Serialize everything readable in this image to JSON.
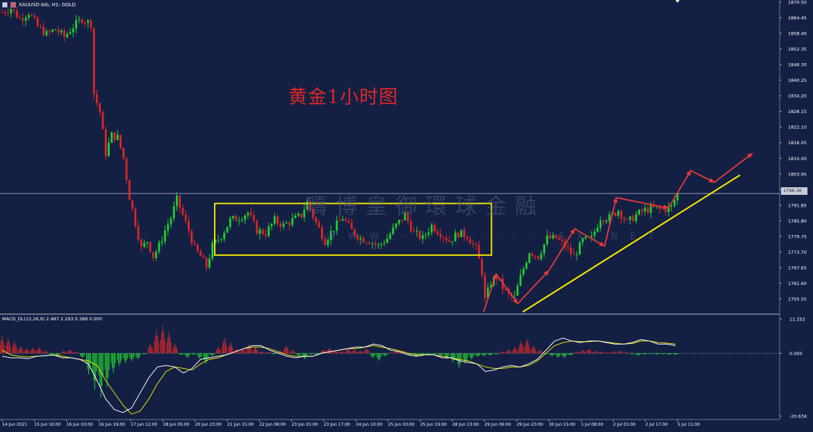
{
  "header": {
    "symbol_label": "XAUUSD-bib, H1:  GOLD",
    "macd_label": "MACD_DL(12,26,9) 2.487 2.293 0.388 0.000"
  },
  "annotation": {
    "title": "黄金1小时图"
  },
  "watermark": {
    "text": "疇博皇御環球金融",
    "sub": "WWW.·········.FX.NET"
  },
  "current_price_tag": "1796.36",
  "colors": {
    "background": "#132044",
    "bull": "#23d12e",
    "bear": "#e02626",
    "box": "#f2e600",
    "trendline": "#f2e600",
    "arrows": "#ef3a3a",
    "macd_signal": "#f2e600",
    "macd_line": "#ffffff"
  },
  "chart_data": [
    {
      "type": "candlestick",
      "title": "",
      "y_axis_ticks": [
        "1870.50",
        "1864.45",
        "1858.40",
        "1852.35",
        "1846.30",
        "1840.25",
        "1834.20",
        "1828.15",
        "1822.10",
        "1816.05",
        "1810.00",
        "1803.95",
        "1797.90",
        "1791.85",
        "1785.80",
        "1779.75",
        "1773.70",
        "1767.65",
        "1761.60",
        "1755.55"
      ],
      "ylim": [
        1750.0,
        1871.0
      ],
      "x_axis_ticks": [
        "14 Jun 2021",
        "15 Jun 10:00",
        "16 Jun 03:00",
        "16 Jun 19:00",
        "17 Jun 12:00",
        "18 Jun 05:00",
        "20 Jun 23:00",
        "21 Jun 15:00",
        "22 Jun 08:00",
        "23 Jun 01:00",
        "23 Jun 17:00",
        "24 Jun 10:00",
        "25 Jun 03:00",
        "25 Jun 19:00",
        "28 Jun 13:00",
        "29 Jun 06:00",
        "29 Jun 23:00",
        "30 Jun 15:00",
        "1 Jul 08:00",
        "2 Jul 01:00",
        "2 Jul 17:00",
        "5 Jul 11:00"
      ],
      "current_price": 1796.36,
      "close_path": [
        [
          0,
          1866.5
        ],
        [
          3,
          1868.0
        ],
        [
          6,
          1864.0
        ],
        [
          9,
          1866.5
        ],
        [
          12,
          1861.0
        ],
        [
          15,
          1858.0
        ],
        [
          18,
          1860.0
        ],
        [
          21,
          1857.0
        ],
        [
          24,
          1861.0
        ],
        [
          27,
          1864.0
        ],
        [
          30,
          1862.0
        ],
        [
          31,
          1835.0
        ],
        [
          33,
          1828.0
        ],
        [
          35,
          1812.0
        ],
        [
          37,
          1819.0
        ],
        [
          39,
          1818.0
        ],
        [
          41,
          1810.0
        ],
        [
          43,
          1795.0
        ],
        [
          45,
          1785.0
        ],
        [
          47,
          1775.0
        ],
        [
          49,
          1778.0
        ],
        [
          51,
          1772.0
        ],
        [
          53,
          1776.0
        ],
        [
          55,
          1782.0
        ],
        [
          57,
          1787.0
        ],
        [
          59,
          1794.0
        ],
        [
          61,
          1788.0
        ],
        [
          63,
          1782.0
        ],
        [
          65,
          1775.0
        ],
        [
          67,
          1772.0
        ],
        [
          69,
          1768.0
        ],
        [
          71,
          1776.0
        ],
        [
          74,
          1780.0
        ],
        [
          77,
          1786.0
        ],
        [
          80,
          1787.0
        ],
        [
          83,
          1789.0
        ],
        [
          86,
          1782.0
        ],
        [
          89,
          1781.0
        ],
        [
          92,
          1786.0
        ],
        [
          95,
          1784.0
        ],
        [
          98,
          1786.0
        ],
        [
          101,
          1788.0
        ],
        [
          103,
          1793.0
        ],
        [
          106,
          1785.0
        ],
        [
          109,
          1778.0
        ],
        [
          112,
          1783.0
        ],
        [
          115,
          1787.0
        ],
        [
          118,
          1782.0
        ],
        [
          121,
          1779.0
        ],
        [
          124,
          1778.0
        ],
        [
          127,
          1776.0
        ],
        [
          130,
          1779.0
        ],
        [
          133,
          1784.0
        ],
        [
          136,
          1788.0
        ],
        [
          139,
          1781.0
        ],
        [
          142,
          1779.0
        ],
        [
          145,
          1784.0
        ],
        [
          148,
          1781.0
        ],
        [
          151,
          1778.0
        ],
        [
          154,
          1781.0
        ],
        [
          157,
          1780.0
        ],
        [
          160,
          1775.0
        ],
        [
          162,
          1766.0
        ],
        [
          163,
          1755.0
        ],
        [
          165,
          1762.0
        ],
        [
          167,
          1764.0
        ],
        [
          169,
          1760.0
        ],
        [
          171,
          1757.0
        ],
        [
          173,
          1756.0
        ],
        [
          175,
          1764.0
        ],
        [
          178,
          1774.0
        ],
        [
          181,
          1772.0
        ],
        [
          184,
          1779.0
        ],
        [
          187,
          1779.0
        ],
        [
          190,
          1776.0
        ],
        [
          193,
          1772.0
        ],
        [
          196,
          1778.0
        ],
        [
          199,
          1779.0
        ],
        [
          202,
          1787.0
        ],
        [
          205,
          1787.0
        ],
        [
          208,
          1790.0
        ],
        [
          211,
          1785.0
        ],
        [
          214,
          1788.0
        ],
        [
          217,
          1790.0
        ],
        [
          220,
          1790.5
        ],
        [
          223,
          1790.0
        ],
        [
          226,
          1791.0
        ],
        [
          228,
          1796.5
        ]
      ],
      "annotations": {
        "consolidation_box": {
          "x_from": "21 Jun 15:00",
          "x_to": "29 Jun 06:00",
          "y_range": [
            1772.5,
            1792.5
          ]
        },
        "trendline": {
          "points": [
            [
              "29 Jun 06:00",
              1750.5
            ],
            [
              "5 Jul 11:00",
              1803.5
            ]
          ]
        },
        "projection_arrow_targets": [
          1804.0,
          1800.0,
          1809.5
        ]
      }
    },
    {
      "type": "bar+line",
      "title": "MACD_DL(12,26,9)",
      "y_axis_ticks": [
        "11.252",
        "0.000",
        "-20.634"
      ],
      "ylim": [
        -20.634,
        11.252
      ],
      "series": [
        {
          "name": "histogram",
          "values": [
            5.5,
            5.0,
            3.8,
            2.2,
            1.5,
            1.8,
            2.0,
            0.8,
            -0.6,
            -0.8,
            0.8,
            1.2,
            0.5,
            -1.5,
            -7.0,
            -12.0,
            -14.5,
            -11.0,
            -6.5,
            -4.2,
            -3.2,
            -2.6,
            -2.0,
            -0.4,
            3.0,
            7.5,
            9.0,
            7.0,
            3.0,
            -0.6,
            -1.5,
            -0.5,
            -1.8,
            -3.5,
            -0.9,
            2.0,
            5.0,
            3.5,
            1.4,
            1.6,
            3.0,
            2.0,
            0.6,
            0.4,
            -0.4,
            0.8,
            2.5,
            1.0,
            -0.8,
            -2.0,
            -0.4,
            -0.8,
            1.2,
            1.8,
            0.8,
            0.6,
            1.5,
            1.2,
            0.8,
            1.5,
            -1.5,
            -2.5,
            -1.0,
            0.3,
            1.0,
            0.8,
            -0.8,
            -1.2,
            -0.9,
            -0.6,
            -0.4,
            -0.8,
            -1.8,
            -3.0,
            -4.8,
            -3.5,
            -2.0,
            -1.2,
            -1.0,
            -0.8,
            -0.4,
            0.6,
            1.2,
            2.0,
            4.0,
            4.8,
            2.5,
            1.0,
            -0.4,
            -1.0,
            -1.5,
            -1.5,
            -0.8,
            0.5,
            1.0,
            1.4,
            0.8,
            0.5,
            0.3,
            0.6,
            0.8,
            0.4,
            -0.4,
            -0.8,
            -0.5,
            -0.3,
            -0.5,
            -0.4,
            -0.6,
            -0.6
          ]
        },
        {
          "name": "macd",
          "values": [
            -1.0,
            -1.5,
            -1.5,
            -1.8,
            -1.0,
            -0.8,
            -0.6,
            -1.5,
            -1.5,
            -2.0,
            -3.5,
            -9.0,
            -15.0,
            -18.5,
            -19.5,
            -18.0,
            -13.0,
            -8.0,
            -4.5,
            -4.0,
            -4.5,
            -6.5,
            -5.0,
            -2.0,
            -1.5,
            -1.0,
            -0.5,
            0.5,
            1.5,
            2.5,
            2.5,
            1.0,
            0.0,
            -1.0,
            -1.5,
            -1.0,
            -1.0,
            0.0,
            0.5,
            1.0,
            1.5,
            2.0,
            2.0,
            3.0,
            2.5,
            1.0,
            0.5,
            -0.5,
            -1.0,
            -0.5,
            -0.5,
            -1.5,
            -1.5,
            -2.5,
            -3.0,
            -3.5,
            -6.0,
            -5.5,
            -4.5,
            -4.0,
            -4.5,
            -3.5,
            -2.0,
            1.0,
            4.0,
            5.0,
            4.0,
            3.5,
            4.0,
            4.0,
            3.5,
            3.0,
            3.0,
            3.5,
            4.5,
            4.0,
            3.0,
            3.0,
            2.5
          ]
        },
        {
          "name": "signal",
          "values": [
            1.0,
            -0.5,
            -1.0,
            -1.2,
            -1.0,
            -0.8,
            -0.5,
            -1.0,
            -1.5,
            -2.0,
            -2.5,
            -4.0,
            -9.0,
            -13.0,
            -17.0,
            -20.0,
            -19.0,
            -15.0,
            -10.0,
            -6.0,
            -4.5,
            -5.0,
            -5.5,
            -3.5,
            -2.0,
            -1.5,
            -0.5,
            0.5,
            1.5,
            2.0,
            2.0,
            1.5,
            0.5,
            -0.5,
            -1.0,
            -1.0,
            -1.0,
            0.0,
            0.5,
            1.0,
            1.5,
            1.5,
            2.0,
            2.5,
            2.0,
            1.5,
            0.8,
            0.0,
            -0.5,
            -0.5,
            -0.5,
            -1.0,
            -1.5,
            -2.0,
            -2.5,
            -3.5,
            -4.5,
            -5.0,
            -5.0,
            -4.5,
            -4.5,
            -4.0,
            -2.5,
            0.0,
            2.5,
            3.5,
            4.0,
            3.8,
            3.8,
            4.0,
            3.7,
            3.3,
            3.0,
            3.2,
            4.0,
            4.0,
            3.5,
            3.3,
            3.0
          ]
        }
      ]
    }
  ]
}
